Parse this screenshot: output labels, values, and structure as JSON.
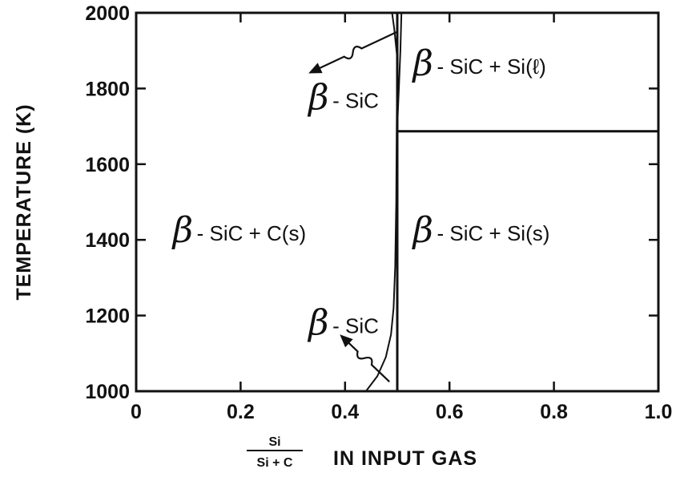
{
  "chart_data": {
    "type": "phase-diagram",
    "title": "",
    "xlabel": {
      "numerator": "Si",
      "denominator": "Si + C",
      "suffix": "IN INPUT GAS"
    },
    "ylabel": "TEMPERATURE (K)",
    "xlim": [
      0,
      1.0
    ],
    "ylim": [
      1000,
      2000
    ],
    "x_ticks": [
      0,
      0.2,
      0.4,
      0.6,
      0.8,
      1.0
    ],
    "x_tick_labels": [
      "0",
      "0.2",
      "0.4",
      "0.6",
      "0.8",
      "1.0"
    ],
    "y_ticks": [
      1000,
      1200,
      1400,
      1600,
      1800,
      2000
    ],
    "y_tick_labels": [
      "1000",
      "1200",
      "1400",
      "1600",
      "1800",
      "2000"
    ],
    "boundaries": [
      {
        "name": "vertical",
        "points": [
          [
            0.5,
            1000
          ],
          [
            0.5,
            2000
          ]
        ]
      },
      {
        "name": "si-melting",
        "points": [
          [
            0.5,
            1687
          ],
          [
            1.0,
            1687
          ]
        ]
      },
      {
        "name": "left-lower",
        "points": [
          [
            0.44,
            1000
          ],
          [
            0.462,
            1040
          ],
          [
            0.478,
            1090
          ],
          [
            0.488,
            1150
          ],
          [
            0.493,
            1220
          ],
          [
            0.496,
            1330
          ],
          [
            0.498,
            1500
          ],
          [
            0.499,
            1700
          ],
          [
            0.5,
            1880
          ]
        ]
      },
      {
        "name": "left-upper",
        "points": [
          [
            0.5,
            1880
          ],
          [
            0.494,
            1960
          ],
          [
            0.49,
            2000
          ]
        ]
      },
      {
        "name": "right-upper",
        "points": [
          [
            0.5,
            1700
          ],
          [
            0.503,
            1800
          ],
          [
            0.506,
            1900
          ],
          [
            0.508,
            2000
          ]
        ]
      }
    ],
    "regions": [
      {
        "prefix": "β",
        "label": "- SiC + C(s)",
        "x": 0.07,
        "y": 1420
      },
      {
        "prefix": "β",
        "label": "- SiC + Si(s)",
        "x": 0.53,
        "y": 1420
      },
      {
        "prefix": "β",
        "label": "- SiC + Si(ℓ)",
        "x": 0.53,
        "y": 1860
      },
      {
        "prefix": "β",
        "label": "- SiC",
        "x": 0.33,
        "y": 1770
      },
      {
        "prefix": "β",
        "label": "- SiC",
        "x": 0.33,
        "y": 1175
      }
    ],
    "annotation_arrows": [
      {
        "from": [
          0.5,
          1950
        ],
        "to": [
          0.33,
          1840
        ]
      },
      {
        "from": [
          0.485,
          1025
        ],
        "to": [
          0.39,
          1150
        ]
      }
    ],
    "grid": false
  }
}
